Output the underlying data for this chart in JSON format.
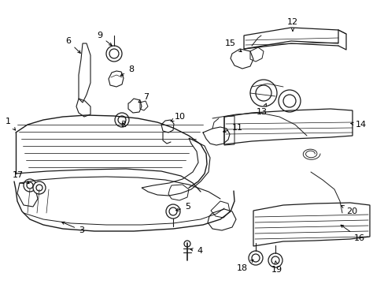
{
  "bg": "#ffffff",
  "lc": "#1a1a1a",
  "lw": 0.9,
  "figw": 4.89,
  "figh": 3.6,
  "dpi": 100,
  "xlim": [
    0,
    489
  ],
  "ylim": [
    0,
    360
  ]
}
